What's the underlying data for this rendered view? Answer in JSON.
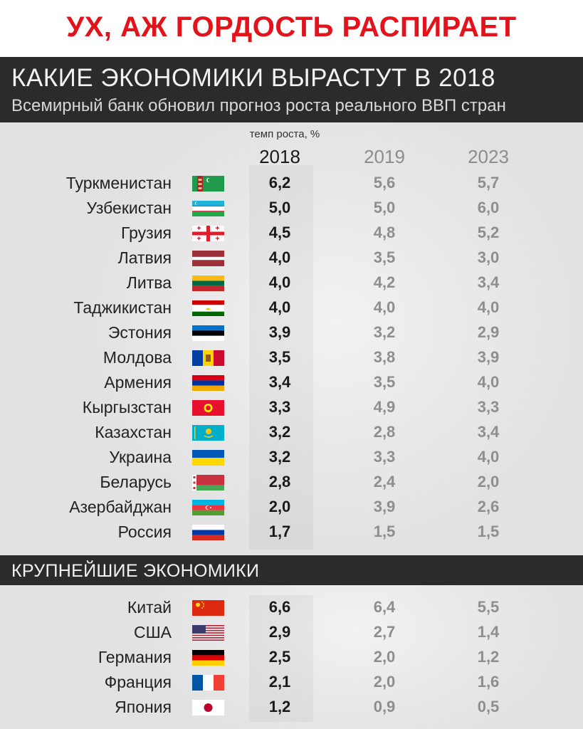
{
  "banner": "УХ, АЖ ГОРДОСТЬ РАСПИРАЕТ",
  "header": {
    "title": "КАКИЕ ЭКОНОМИКИ ВЫРАСТУТ В 2018",
    "subtitle": "Всемирный банк обновил прогноз роста реального ВВП стран"
  },
  "section2_title": "КРУПНЕЙШИЕ ЭКОНОМИКИ",
  "chart_data": {
    "type": "table",
    "unit_label": "темп роста, %",
    "columns": [
      "2018",
      "2019",
      "2023"
    ],
    "groups": [
      {
        "name": "",
        "rows": [
          {
            "country": "Туркменистан",
            "flag": "turkmenistan-flag",
            "values": [
              "6,2",
              "5,6",
              "5,7"
            ]
          },
          {
            "country": "Узбекистан",
            "flag": "uzbekistan-flag",
            "values": [
              "5,0",
              "5,0",
              "6,0"
            ]
          },
          {
            "country": "Грузия",
            "flag": "georgia-flag",
            "values": [
              "4,5",
              "4,8",
              "5,2"
            ]
          },
          {
            "country": "Латвия",
            "flag": "latvia-flag",
            "values": [
              "4,0",
              "3,5",
              "3,0"
            ]
          },
          {
            "country": "Литва",
            "flag": "lithuania-flag",
            "values": [
              "4,0",
              "4,2",
              "3,4"
            ]
          },
          {
            "country": "Таджикистан",
            "flag": "tajikistan-flag",
            "values": [
              "4,0",
              "4,0",
              "4,0"
            ]
          },
          {
            "country": "Эстония",
            "flag": "estonia-flag",
            "values": [
              "3,9",
              "3,2",
              "2,9"
            ]
          },
          {
            "country": "Молдова",
            "flag": "moldova-flag",
            "values": [
              "3,5",
              "3,8",
              "3,9"
            ]
          },
          {
            "country": "Армения",
            "flag": "armenia-flag",
            "values": [
              "3,4",
              "3,5",
              "4,0"
            ]
          },
          {
            "country": "Кыргызстан",
            "flag": "kyrgyzstan-flag",
            "values": [
              "3,3",
              "4,9",
              "3,3"
            ]
          },
          {
            "country": "Казахстан",
            "flag": "kazakhstan-flag",
            "values": [
              "3,2",
              "2,8",
              "3,4"
            ]
          },
          {
            "country": "Украина",
            "flag": "ukraine-flag",
            "values": [
              "3,2",
              "3,3",
              "4,0"
            ]
          },
          {
            "country": "Беларусь",
            "flag": "belarus-flag",
            "values": [
              "2,8",
              "2,4",
              "2,0"
            ]
          },
          {
            "country": "Азербайджан",
            "flag": "azerbaijan-flag",
            "values": [
              "2,0",
              "3,9",
              "2,6"
            ]
          },
          {
            "country": "Россия",
            "flag": "russia-flag",
            "values": [
              "1,7",
              "1,5",
              "1,5"
            ]
          }
        ]
      },
      {
        "name": "КРУПНЕЙШИЕ ЭКОНОМИКИ",
        "rows": [
          {
            "country": "Китай",
            "flag": "china-flag",
            "values": [
              "6,6",
              "6,4",
              "5,5"
            ]
          },
          {
            "country": "США",
            "flag": "usa-flag",
            "values": [
              "2,9",
              "2,7",
              "1,4"
            ]
          },
          {
            "country": "Германия",
            "flag": "germany-flag",
            "values": [
              "2,5",
              "2,0",
              "1,2"
            ]
          },
          {
            "country": "Франция",
            "flag": "france-flag",
            "values": [
              "2,1",
              "2,0",
              "1,6"
            ]
          },
          {
            "country": "Япония",
            "flag": "japan-flag",
            "values": [
              "1,2",
              "0,9",
              "0,5"
            ]
          }
        ]
      }
    ]
  },
  "colors": {
    "banner_red": "#e3131b",
    "header_bg": "#2b2b2b",
    "panel_bg": "#e2e2e2",
    "value_dark": "#1a1a1a",
    "value_grey": "#8e8e8e"
  }
}
